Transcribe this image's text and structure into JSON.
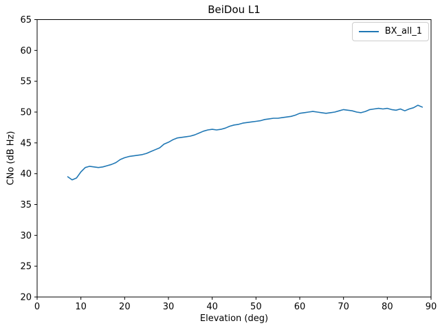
{
  "figure": {
    "background": "#ffffff",
    "accent_color": "#1f77b4"
  },
  "chart_data": {
    "type": "line",
    "title": "BeiDou L1",
    "xlabel": "Elevation (deg)",
    "ylabel": "CNo (dB Hz)",
    "xlim": [
      0,
      90
    ],
    "ylim": [
      20,
      65
    ],
    "xticks": [
      0,
      10,
      20,
      30,
      40,
      50,
      60,
      70,
      80,
      90
    ],
    "yticks": [
      20,
      25,
      30,
      35,
      40,
      45,
      50,
      55,
      60,
      65
    ],
    "grid": false,
    "legend": {
      "position": "upper right",
      "entries": [
        {
          "label": "BX_all_1",
          "color": "#1f77b4"
        }
      ]
    },
    "series": [
      {
        "name": "BX_all_1",
        "color": "#1f77b4",
        "x": [
          7,
          8,
          9,
          10,
          11,
          12,
          13,
          14,
          15,
          16,
          17,
          18,
          19,
          20,
          21,
          22,
          23,
          24,
          25,
          26,
          27,
          28,
          29,
          30,
          31,
          32,
          33,
          34,
          35,
          36,
          37,
          38,
          39,
          40,
          41,
          42,
          43,
          44,
          45,
          46,
          47,
          48,
          49,
          50,
          51,
          52,
          53,
          54,
          55,
          56,
          57,
          58,
          59,
          60,
          61,
          62,
          63,
          64,
          65,
          66,
          67,
          68,
          69,
          70,
          71,
          72,
          73,
          74,
          75,
          76,
          77,
          78,
          79,
          80,
          81,
          82,
          83,
          84,
          85,
          86,
          87,
          88
        ],
        "y": [
          39.5,
          39.0,
          39.3,
          40.3,
          41.0,
          41.2,
          41.1,
          41.0,
          41.1,
          41.3,
          41.5,
          41.8,
          42.3,
          42.6,
          42.8,
          42.9,
          43.0,
          43.1,
          43.3,
          43.6,
          43.9,
          44.2,
          44.8,
          45.1,
          45.5,
          45.8,
          45.9,
          46.0,
          46.1,
          46.3,
          46.6,
          46.9,
          47.1,
          47.2,
          47.1,
          47.2,
          47.4,
          47.7,
          47.9,
          48.0,
          48.2,
          48.3,
          48.4,
          48.5,
          48.6,
          48.8,
          48.9,
          49.0,
          49.0,
          49.1,
          49.2,
          49.3,
          49.5,
          49.8,
          49.9,
          50.0,
          50.1,
          50.0,
          49.9,
          49.8,
          49.9,
          50.0,
          50.2,
          50.4,
          50.3,
          50.2,
          50.0,
          49.9,
          50.1,
          50.4,
          50.5,
          50.6,
          50.5,
          50.6,
          50.4,
          50.3,
          50.5,
          50.2,
          50.5,
          50.7,
          51.1,
          50.8
        ]
      }
    ]
  }
}
